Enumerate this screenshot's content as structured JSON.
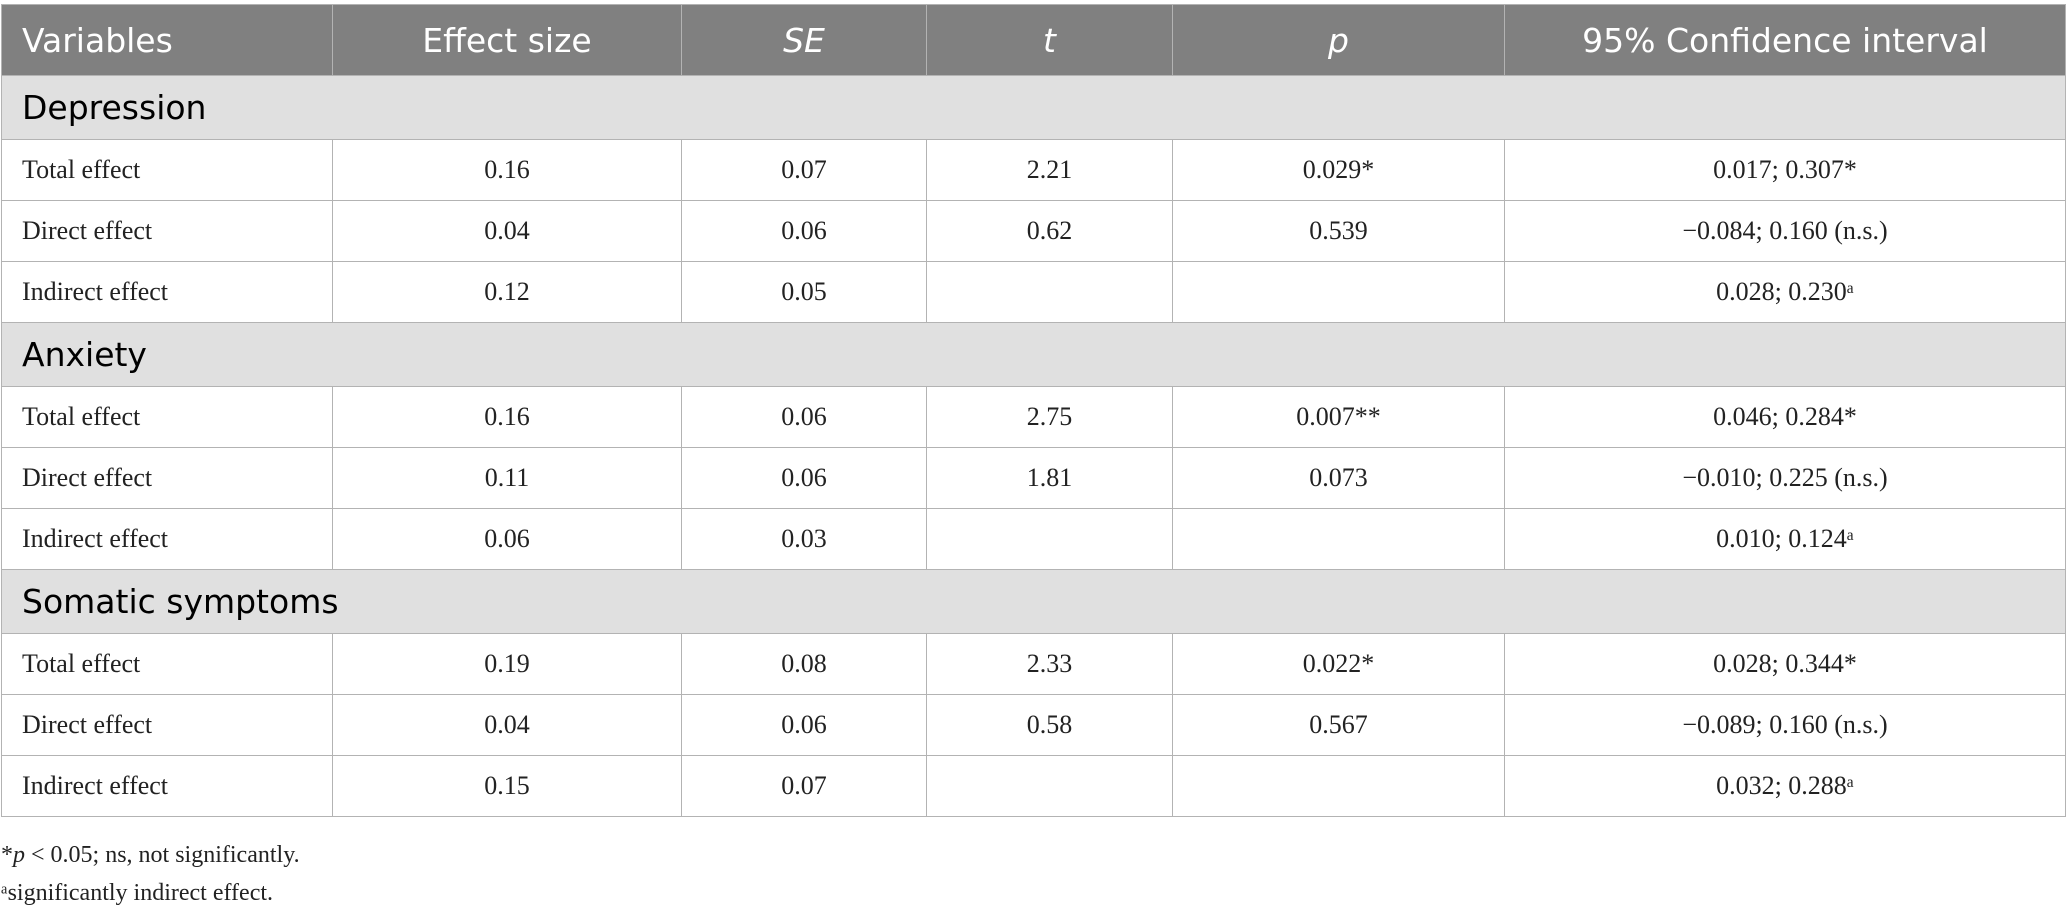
{
  "table": {
    "headers": [
      "Variables",
      "Effect size",
      "SE",
      "t",
      "p",
      "95% Confidence interval"
    ],
    "sections": [
      {
        "title": "Depression",
        "rows": [
          [
            "Total effect",
            "0.16",
            "0.07",
            "2.21",
            "0.029*",
            "0.017; 0.307*"
          ],
          [
            "Direct effect",
            "0.04",
            "0.06",
            "0.62",
            "0.539",
            "−0.084; 0.160 (n.s.)"
          ],
          [
            "Indirect effect",
            "0.12",
            "0.05",
            null,
            null,
            "0.028; 0.230ᵃ"
          ]
        ]
      },
      {
        "title": "Anxiety",
        "rows": [
          [
            "Total effect",
            "0.16",
            "0.06",
            "2.75",
            "0.007**",
            "0.046; 0.284*"
          ],
          [
            "Direct effect",
            "0.11",
            "0.06",
            "1.81",
            "0.073",
            "−0.010; 0.225 (n.s.)"
          ],
          [
            "Indirect effect",
            "0.06",
            "0.03",
            null,
            null,
            "0.010; 0.124ᵃ"
          ]
        ]
      },
      {
        "title": "Somatic symptoms",
        "rows": [
          [
            "Total effect",
            "0.19",
            "0.08",
            "2.33",
            "0.022*",
            "0.028; 0.344*"
          ],
          [
            "Direct effect",
            "0.04",
            "0.06",
            "0.58",
            "0.567",
            "−0.089; 0.160 (n.s.)"
          ],
          [
            "Indirect effect",
            "0.15",
            "0.07",
            null,
            null,
            "0.032; 0.288ᵃ"
          ]
        ]
      }
    ]
  },
  "footnotes": {
    "note1": {
      "mark": "*",
      "symbol": "p",
      "text": " < 0.05; ns, not significantly."
    },
    "note2": "ᵃsignificantly indirect effect."
  }
}
